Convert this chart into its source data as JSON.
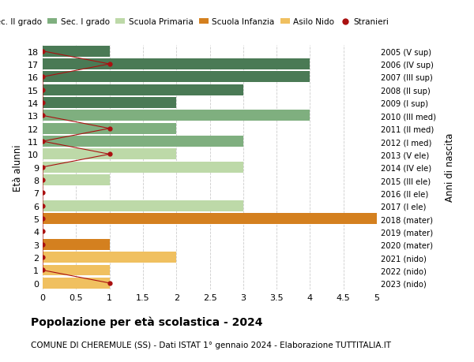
{
  "ages": [
    18,
    17,
    16,
    15,
    14,
    13,
    12,
    11,
    10,
    9,
    8,
    7,
    6,
    5,
    4,
    3,
    2,
    1,
    0
  ],
  "years": [
    "2005 (V sup)",
    "2006 (IV sup)",
    "2007 (III sup)",
    "2008 (II sup)",
    "2009 (I sup)",
    "2010 (III med)",
    "2011 (II med)",
    "2012 (I med)",
    "2013 (V ele)",
    "2014 (IV ele)",
    "2015 (III ele)",
    "2016 (II ele)",
    "2017 (I ele)",
    "2018 (mater)",
    "2019 (mater)",
    "2020 (mater)",
    "2021 (nido)",
    "2022 (nido)",
    "2023 (nido)"
  ],
  "bar_values": [
    1,
    4,
    4,
    3,
    2,
    4,
    2,
    3,
    2,
    3,
    1,
    0,
    3,
    5,
    0,
    1,
    2,
    1,
    1
  ],
  "bar_colors": [
    "#4a7a55",
    "#4a7a55",
    "#4a7a55",
    "#4a7a55",
    "#4a7a55",
    "#7faf7f",
    "#7faf7f",
    "#7faf7f",
    "#bdd9a8",
    "#bdd9a8",
    "#bdd9a8",
    "#bdd9a8",
    "#bdd9a8",
    "#d4801f",
    "#d4801f",
    "#d4801f",
    "#f0c060",
    "#f0c060",
    "#f0c060"
  ],
  "stranieri_values": [
    0,
    1,
    0,
    0,
    0,
    0,
    1,
    0,
    1,
    0,
    0,
    0,
    0,
    0,
    0,
    0,
    0,
    0,
    1
  ],
  "stranieri_color": "#aa1111",
  "stranieri_line_color": "#aa1111",
  "ylabel": "Età alunni",
  "ylabel2": "Anni di nascita",
  "xlim": [
    0,
    5.0
  ],
  "xticks": [
    0,
    0.5,
    1.0,
    1.5,
    2.0,
    2.5,
    3.0,
    3.5,
    4.0,
    4.5,
    5.0
  ],
  "title": "Popolazione per età scolastica - 2024",
  "subtitle": "COMUNE DI CHEREMULE (SS) - Dati ISTAT 1° gennaio 2024 - Elaborazione TUTTITALIA.IT",
  "legend_labels": [
    "Sec. II grado",
    "Sec. I grado",
    "Scuola Primaria",
    "Scuola Infanzia",
    "Asilo Nido",
    "Stranieri"
  ],
  "legend_colors": [
    "#4a7a55",
    "#7faf7f",
    "#bdd9a8",
    "#d4801f",
    "#f0c060",
    "#aa1111"
  ],
  "bg_color": "#ffffff",
  "grid_color": "#cccccc",
  "bar_height": 0.85,
  "ylim_bottom": -0.5,
  "ylim_top": 18.5
}
